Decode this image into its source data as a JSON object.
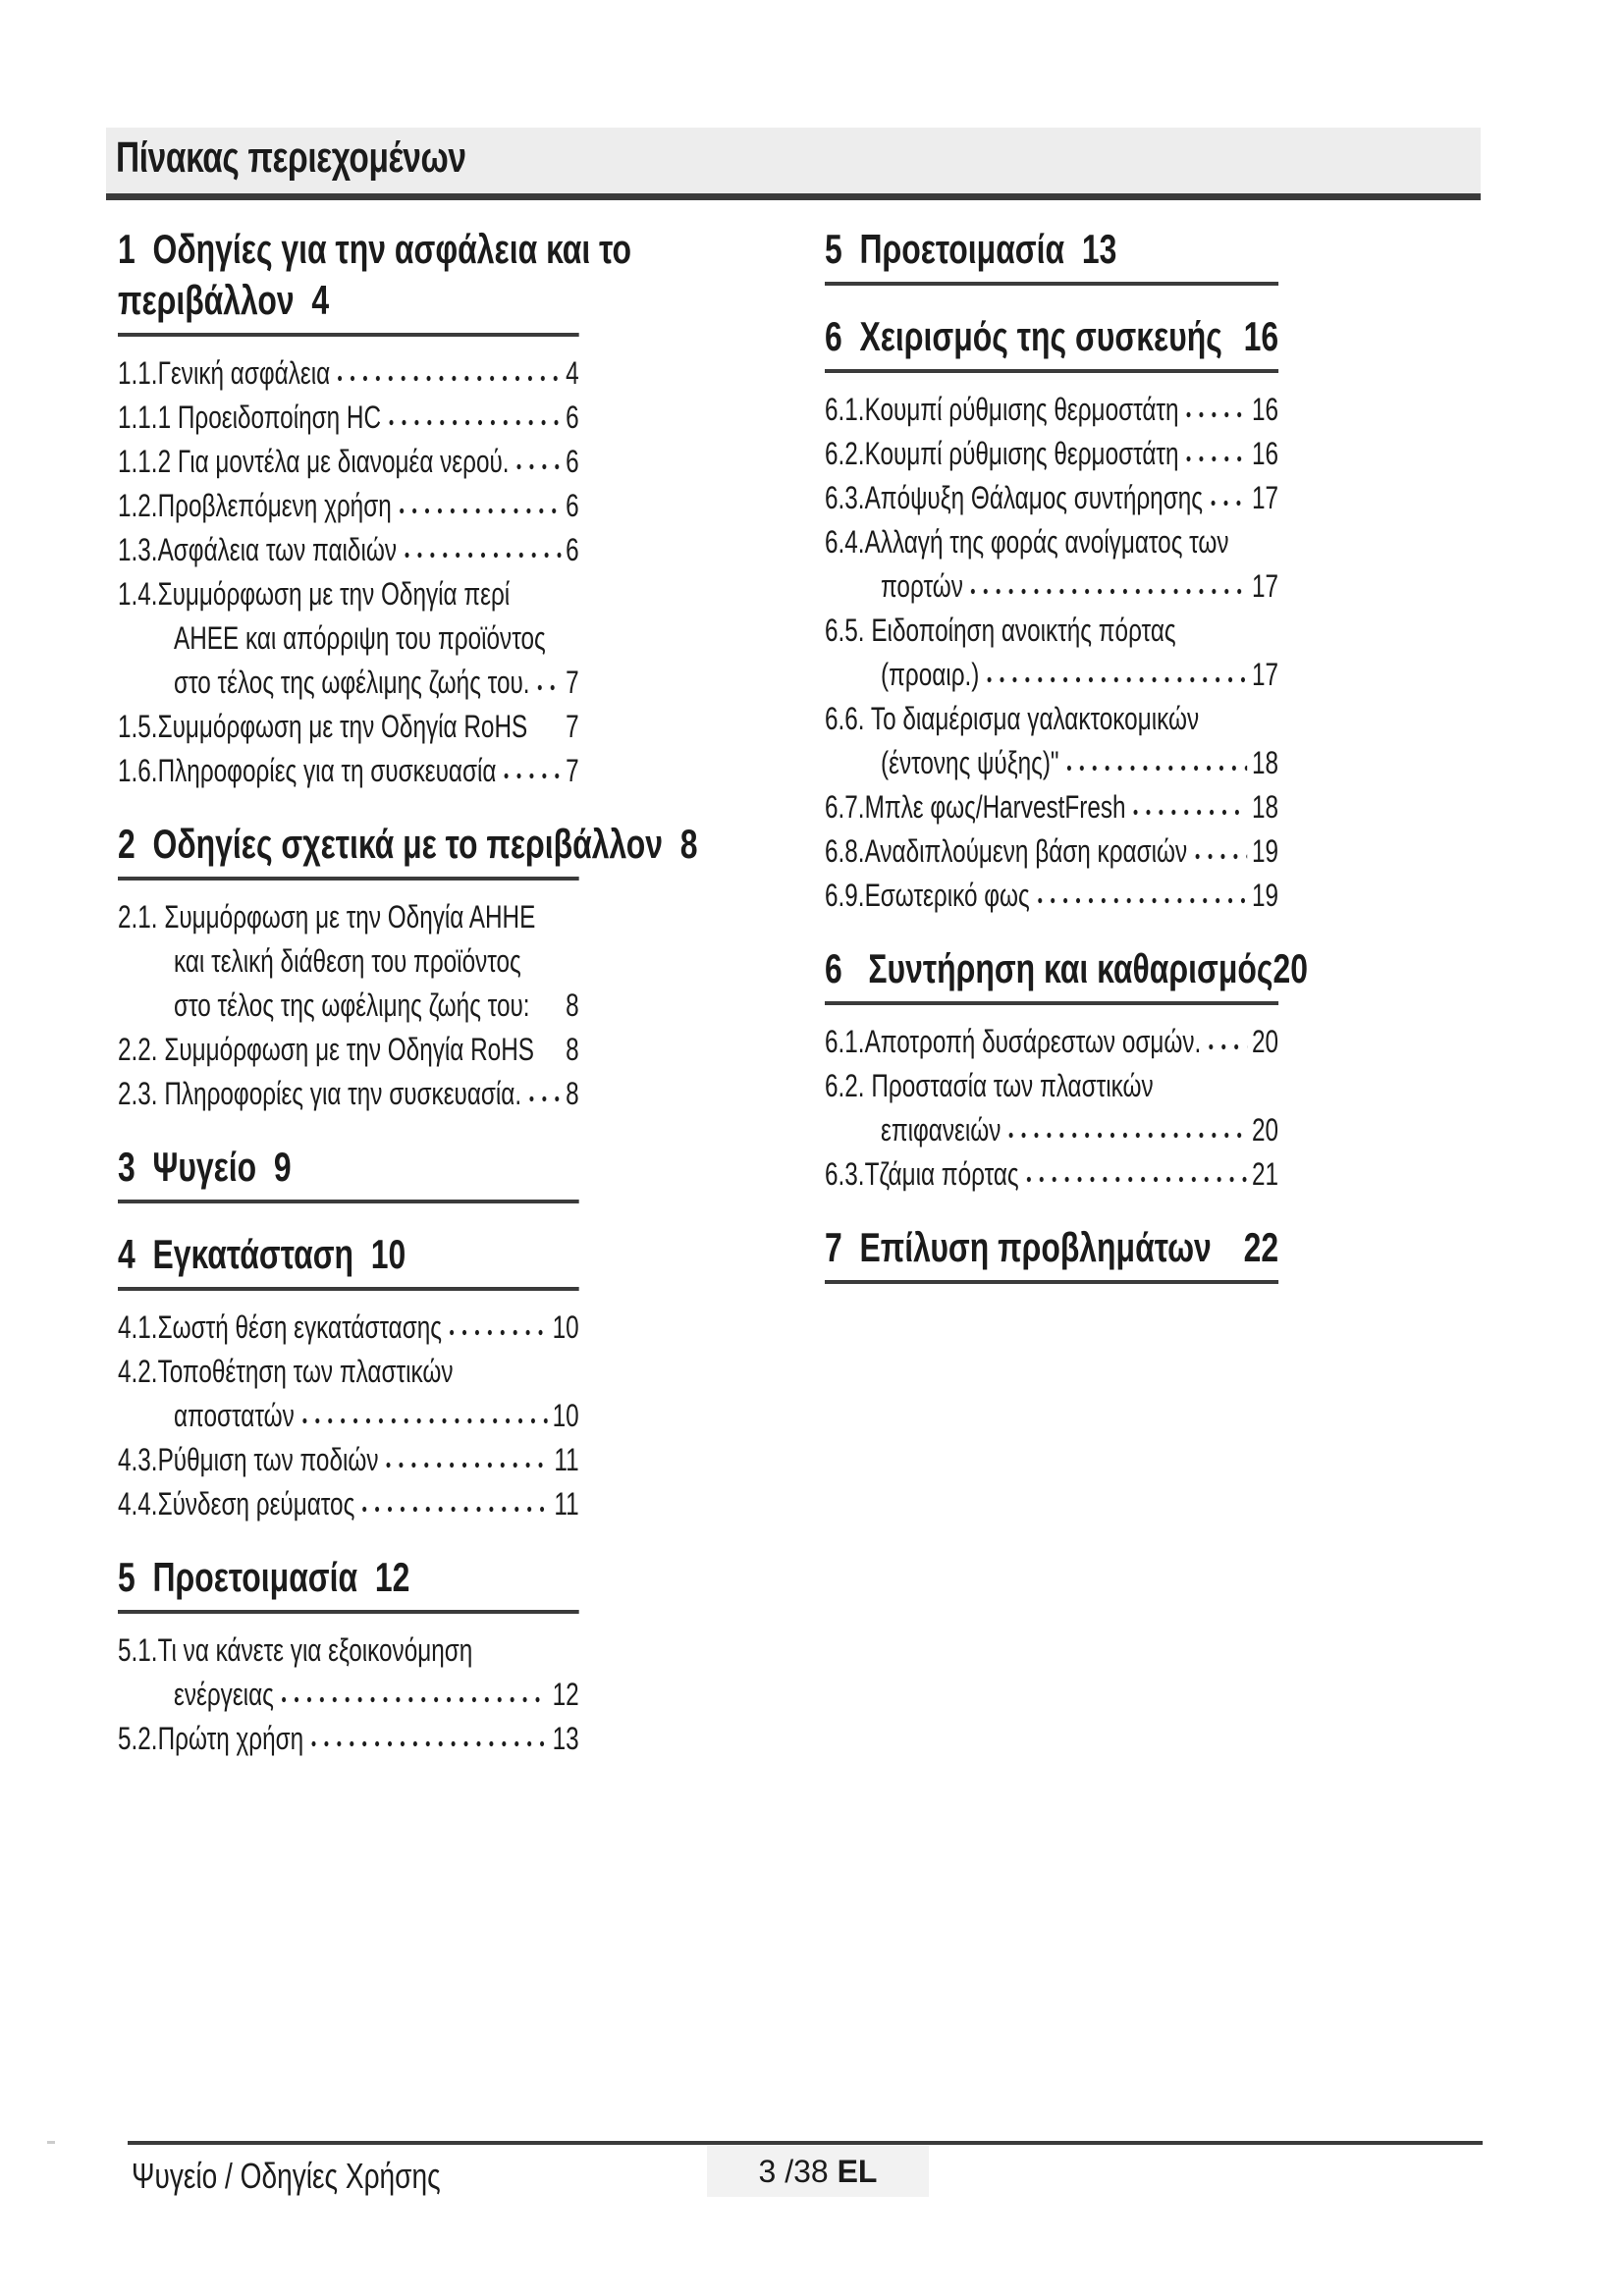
{
  "page": {
    "title": "Πίνακας περιεχομένων",
    "footer": {
      "doc_label": "Ψυγείο / Οδηγίες Χρήσης",
      "page_indicator": "3 /38 ",
      "language": "EL"
    }
  },
  "toc": {
    "columns": [
      {
        "sections": [
          {
            "heading_lines": [
              "1  Οδηγίες για την ασφάλεια και το",
              "περιβάλλον  4"
            ],
            "entries": [
              {
                "text": "1.1.Γενική ασφάλεια",
                "leader": true,
                "page": "4"
              },
              {
                "text": "1.1.1 Προειδοποίηση HC",
                "leader": true,
                "page": "6"
              },
              {
                "text": "1.1.2 Για μοντέλα με διανομέα νερού.",
                "leader": true,
                "page": "6"
              },
              {
                "text": "1.2.Προβλεπόμενη χρήση",
                "leader": true,
                "page": "6"
              },
              {
                "text": "1.3.Ασφάλεια των παιδιών",
                "leader": true,
                "page": "6"
              },
              {
                "text": "1.4.Συμμόρφωση με την Οδηγία περί"
              },
              {
                "text": "ΑΗΕΕ και απόρριψη του προϊόντος",
                "indent": true
              },
              {
                "text": "στο τέλος της ωφέλιμης ζωής του.",
                "indent": true,
                "leader": true,
                "page": "7"
              },
              {
                "text": "1.5.Συμμόρφωση με την Οδηγία RoHS",
                "page": "7"
              },
              {
                "text": "1.6.Πληροφορίες για τη συσκευασία",
                "leader": true,
                "page": "7"
              }
            ]
          },
          {
            "heading_lines": [
              "2  Οδηγίες σχετικά με το περιβάλλον  8"
            ],
            "entries": [
              {
                "text": "2.1. Συμμόρφωση με την Οδηγία ΑΗΗΕ"
              },
              {
                "text": "και τελική διάθεση του προϊόντος",
                "indent": true
              },
              {
                "text": "στο τέλος της ωφέλιμης ζωής του:",
                "indent": true,
                "page": "8"
              },
              {
                "text": "2.2. Συμμόρφωση με την Οδηγία RoHS",
                "page": "8"
              },
              {
                "text": "2.3. Πληροφορίες για την συσκευασία.",
                "leader": true,
                "page": "8"
              }
            ]
          },
          {
            "heading_lines": [
              "3  Ψυγείο  9"
            ],
            "entries": []
          },
          {
            "heading_lines": [
              "4  Εγκατάσταση  10"
            ],
            "entries": [
              {
                "text": "4.1.Σωστή θέση εγκατάστασης",
                "leader": true,
                "page": "10"
              },
              {
                "text": "4.2.Τοποθέτηση των πλαστικών"
              },
              {
                "text": "αποστατών",
                "indent": true,
                "leader": true,
                "page": "10"
              },
              {
                "text": "4.3.Ρύθμιση των ποδιών",
                "leader": true,
                "page": "11"
              },
              {
                "text": "4.4.Σύνδεση ρεύματος",
                "leader": true,
                "page": "11"
              }
            ]
          },
          {
            "heading_lines": [
              "5  Προετοιμασία  12"
            ],
            "entries": [
              {
                "text": "5.1.Τι να κάνετε για εξοικονόμηση"
              },
              {
                "text": "ενέργειας",
                "indent": true,
                "leader": true,
                "page": "12"
              },
              {
                "text": "5.2.Πρώτη χρήση",
                "leader": true,
                "page": "13"
              }
            ]
          }
        ]
      },
      {
        "sections": [
          {
            "heading_lines": [
              "5  Προετοιμασία  13"
            ],
            "entries": []
          },
          {
            "heading_lines": [
              "6  Χειρισμός της συσκευής"
            ],
            "page_right": "16",
            "entries": [
              {
                "text": "6.1.Κουμπί ρύθμισης θερμοστάτη",
                "leader": true,
                "page": "16"
              },
              {
                "text": "6.2.Κουμπί ρύθμισης θερμοστάτη",
                "leader": true,
                "page": "16"
              },
              {
                "text": "6.3.Απόψυξη Θάλαμος συντήρησης",
                "leader": true,
                "page": "17"
              },
              {
                "text": "6.4.Αλλαγή της φοράς ανοίγματος των"
              },
              {
                "text": "πορτών",
                "indent": true,
                "leader": true,
                "page": "17"
              },
              {
                "text": "6.5. Ειδοποίηση ανοικτής πόρτας"
              },
              {
                "text": "(προαιρ.)",
                "indent": true,
                "leader": true,
                "page": "17"
              },
              {
                "text": "6.6. Το διαμέρισμα γαλακτοκομικών"
              },
              {
                "text": "(έντονης ψύξης)\"",
                "indent": true,
                "leader": true,
                "page": "18"
              },
              {
                "text": "6.7.Μπλε φως/HarvestFresh",
                "leader": true,
                "page": "18"
              },
              {
                "text": "6.8.Αναδιπλούμενη βάση κρασιών",
                "leader": true,
                "page": "19"
              },
              {
                "text": "6.9.Εσωτερικό φως",
                "leader": true,
                "page": "19"
              }
            ]
          },
          {
            "heading_lines": [
              "6   Συντήρηση και καθαρισμός"
            ],
            "page_right": "20",
            "entries": [
              {
                "text": "6.1.Αποτροπή δυσάρεστων οσμών.",
                "leader": true,
                "page": "20"
              },
              {
                "text": "6.2. Προστασία των πλαστικών"
              },
              {
                "text": "επιφανειών",
                "indent": true,
                "leader": true,
                "page": "20"
              },
              {
                "text": "6.3.Τζάμια πόρτας",
                "leader": true,
                "page": "21"
              }
            ]
          },
          {
            "heading_lines": [
              "7  Επίλυση προβλημάτων"
            ],
            "page_right": "22",
            "entries": []
          }
        ]
      }
    ]
  }
}
